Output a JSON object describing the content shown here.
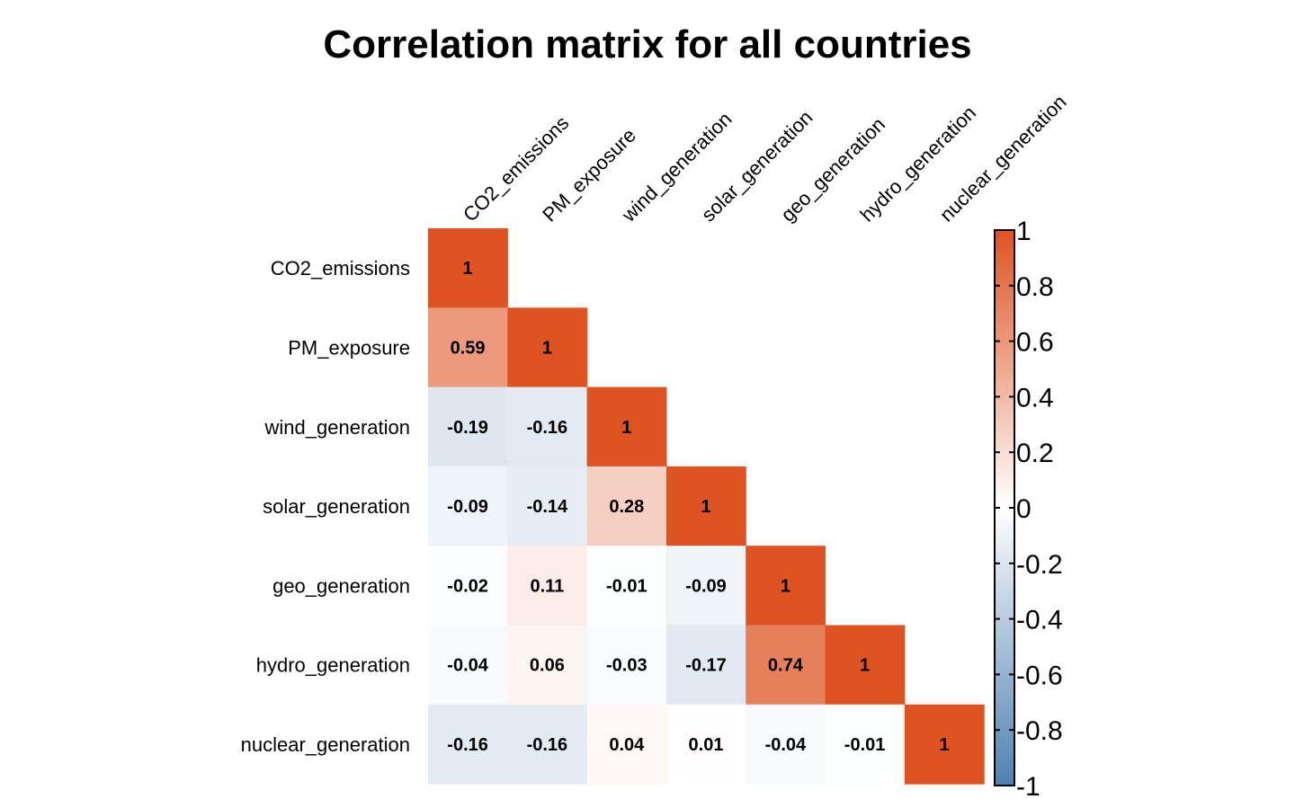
{
  "chart_data": {
    "type": "heatmap",
    "title": "Correlation matrix for all countries",
    "variables": [
      "CO2_emissions",
      "PM_exposure",
      "wind_generation",
      "solar_generation",
      "geo_generation",
      "hydro_generation",
      "nuclear_generation"
    ],
    "layout": "lower-triangular",
    "matrix": [
      [
        1,
        null,
        null,
        null,
        null,
        null,
        null
      ],
      [
        0.59,
        1,
        null,
        null,
        null,
        null,
        null
      ],
      [
        -0.19,
        -0.16,
        1,
        null,
        null,
        null,
        null
      ],
      [
        -0.09,
        -0.14,
        0.28,
        1,
        null,
        null,
        null
      ],
      [
        -0.02,
        0.11,
        -0.01,
        -0.09,
        1,
        null,
        null
      ],
      [
        -0.04,
        0.06,
        -0.03,
        -0.17,
        0.74,
        1,
        null
      ],
      [
        -0.16,
        -0.16,
        0.04,
        0.01,
        -0.04,
        -0.01,
        1
      ]
    ],
    "labels": [
      [
        "1",
        "",
        "",
        "",
        "",
        "",
        ""
      ],
      [
        "0.59",
        "1",
        "",
        "",
        "",
        "",
        ""
      ],
      [
        "-0.19",
        "-0.16",
        "1",
        "",
        "",
        "",
        ""
      ],
      [
        "-0.09",
        "-0.14",
        "0.28",
        "1",
        "",
        "",
        ""
      ],
      [
        "-0.02",
        "0.11",
        "-0.01",
        "-0.09",
        "1",
        "",
        ""
      ],
      [
        "-0.04",
        "0.06",
        "-0.03",
        "-0.17",
        "0.74",
        "1",
        ""
      ],
      [
        "-0.16",
        "-0.16",
        "0.04",
        "0.01",
        "-0.04",
        "-0.01",
        "1"
      ]
    ],
    "colorbar": {
      "range": [
        -1,
        1
      ],
      "ticks": [
        1,
        0.8,
        0.6,
        0.4,
        0.2,
        0,
        -0.2,
        -0.4,
        -0.6,
        -0.8,
        -1
      ],
      "tick_labels": [
        "1",
        "0.8",
        "0.6",
        "0.4",
        "0.2",
        "0",
        "-0.2",
        "-0.4",
        "-0.6",
        "-0.8",
        "-1"
      ],
      "colors": {
        "negative": "#4f80b0",
        "zero": "#ffffff",
        "positive": "#dd5422"
      }
    }
  }
}
